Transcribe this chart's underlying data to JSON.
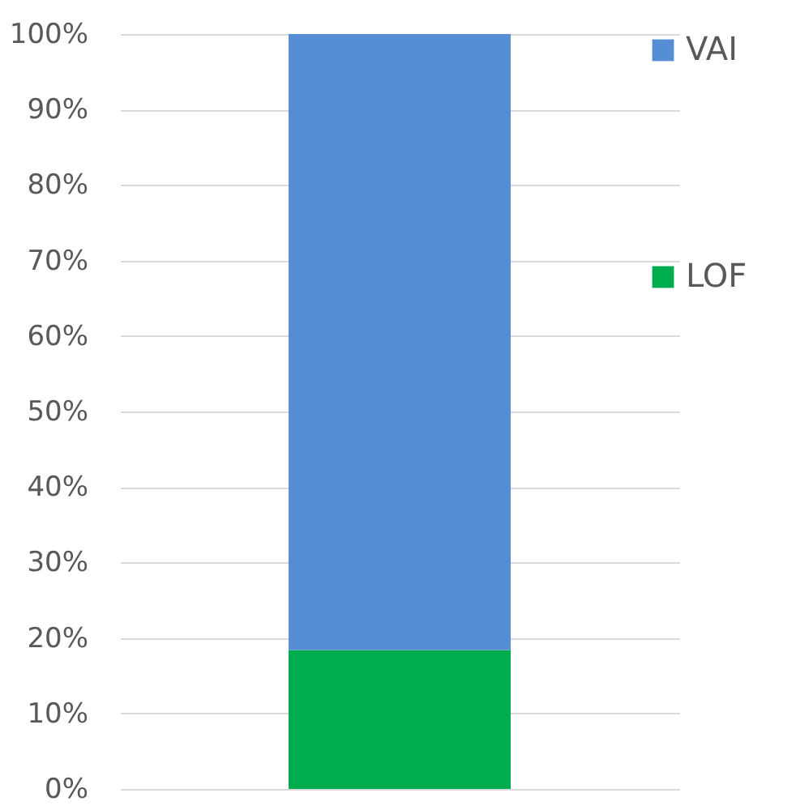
{
  "chart_data": {
    "type": "bar",
    "stacked": true,
    "categories": [
      null
    ],
    "series": [
      {
        "name": "LOF",
        "color": "#00ad4e",
        "values": [
          18.4
        ]
      },
      {
        "name": "VAI",
        "color": "#558ed5",
        "values": [
          81.6
        ]
      }
    ],
    "ylim": [
      0,
      100
    ],
    "yticks": [
      {
        "value": 0,
        "label": "0%"
      },
      {
        "value": 10,
        "label": "10%"
      },
      {
        "value": 20,
        "label": "20%"
      },
      {
        "value": 30,
        "label": "30%"
      },
      {
        "value": 40,
        "label": "40%"
      },
      {
        "value": 50,
        "label": "50%"
      },
      {
        "value": 60,
        "label": "60%"
      },
      {
        "value": 70,
        "label": "70%"
      },
      {
        "value": 80,
        "label": "80%"
      },
      {
        "value": 90,
        "label": "90%"
      },
      {
        "value": 100,
        "label": "100%"
      }
    ],
    "grid": "y",
    "legend": "right",
    "tick_labels": "y"
  }
}
